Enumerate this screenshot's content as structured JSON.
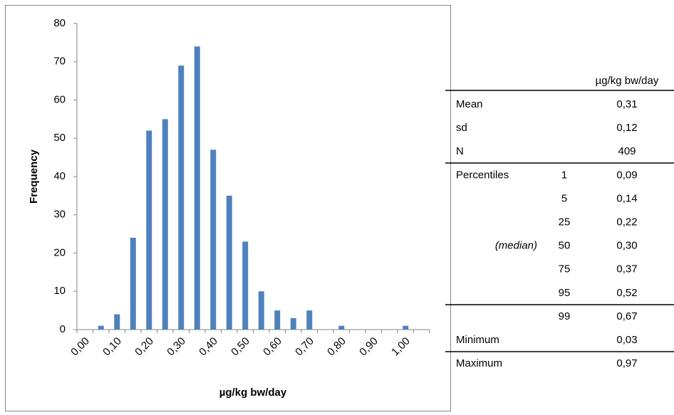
{
  "chart_data": {
    "type": "bar",
    "x_label": "µg/kg bw/day",
    "y_label": "Frequency",
    "categories": [
      "0,00",
      null,
      "0,10",
      null,
      "0,20",
      null,
      "0,30",
      null,
      "0,40",
      null,
      "0,50",
      null,
      "0,60",
      null,
      "0,70",
      null,
      "0,80",
      null,
      "0,90",
      null,
      "1,00",
      null
    ],
    "values": [
      0,
      1,
      4,
      24,
      52,
      55,
      69,
      74,
      47,
      35,
      23,
      10,
      5,
      3,
      5,
      0,
      1,
      0,
      0,
      0,
      1,
      0
    ],
    "color": "#4f81bd",
    "ylim": [
      0,
      80
    ],
    "yticks": [
      0,
      10,
      20,
      30,
      40,
      50,
      60,
      70,
      80
    ],
    "grid": false
  },
  "table": {
    "header": "µg/kg bw/day",
    "rows": [
      {
        "label": "Mean",
        "value": "0,31"
      },
      {
        "label": "sd",
        "value": "0,12"
      },
      {
        "label": "N",
        "value": "409"
      },
      {
        "label": "Percentiles",
        "p": "1",
        "value": "0,09"
      },
      {
        "p": "5",
        "value": "0,14"
      },
      {
        "p": "25",
        "value": "0,22"
      },
      {
        "label": "(median)",
        "p": "50",
        "value": "0,30"
      },
      {
        "p": "75",
        "value": "0,37"
      },
      {
        "p": "95",
        "value": "0,52"
      },
      {
        "p": "99",
        "value": "0,67"
      },
      {
        "label": "Minimum",
        "value": "0,03"
      },
      {
        "label": "Maximum",
        "value": "0,97"
      }
    ]
  }
}
